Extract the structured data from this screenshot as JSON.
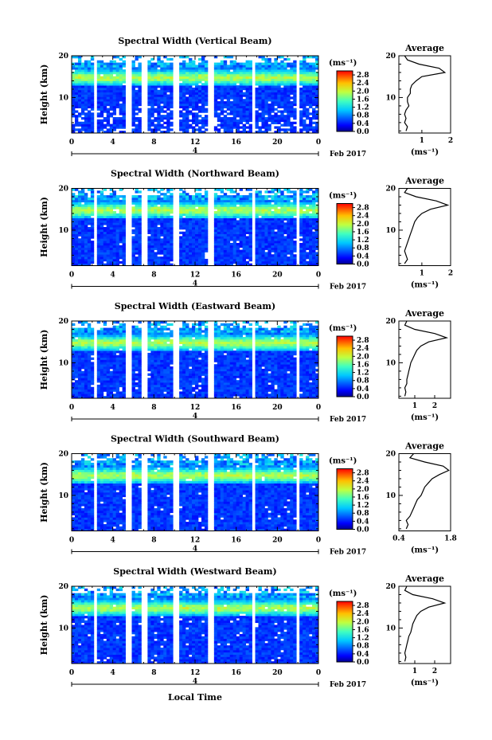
{
  "figure": {
    "xlabel": "Local Time",
    "date_label": "Feb 2017",
    "day_label": "4",
    "height_label": "Height (km)",
    "colorbar_unit": "(ms⁻¹)",
    "average_title": "Average",
    "average_xunit": "(ms⁻¹)"
  },
  "chart_data": [
    {
      "type": "heatmap",
      "title": "Spectral Width (Vertical Beam)",
      "xlabel": "Local Time",
      "ylabel": "Height (km)",
      "xlim": [
        0,
        24
      ],
      "ylim": [
        1.5,
        20
      ],
      "xticks": [
        "0",
        "4",
        "8",
        "12",
        "16",
        "20",
        "0"
      ],
      "yticks": [
        "10",
        "20"
      ],
      "colorbar": {
        "unit": "(ms⁻¹)",
        "ticks": [
          "0.0",
          "0.4",
          "0.8",
          "1.2",
          "1.6",
          "2.0",
          "2.4",
          "2.8"
        ],
        "range": [
          0,
          3.0
        ]
      },
      "average_profile": {
        "title": "Average",
        "xlabel": "(ms⁻¹)",
        "xticks": [
          "1",
          "2"
        ],
        "xlim": [
          0.2,
          2.0
        ],
        "yticks": [
          "10",
          "20"
        ],
        "height": [
          2,
          3,
          4,
          5,
          6,
          7,
          8,
          9,
          10,
          11,
          12,
          13,
          14,
          15,
          16,
          17,
          18,
          19,
          20
        ],
        "value": [
          0.45,
          0.5,
          0.4,
          0.45,
          0.4,
          0.45,
          0.55,
          0.5,
          0.5,
          0.6,
          0.6,
          0.65,
          0.8,
          1.0,
          1.8,
          1.6,
          0.9,
          0.5,
          0.4
        ]
      }
    },
    {
      "type": "heatmap",
      "title": "Spectral Width (Northward Beam)",
      "xlabel": "Local Time",
      "ylabel": "Height (km)",
      "xlim": [
        0,
        24
      ],
      "ylim": [
        1.5,
        20
      ],
      "xticks": [
        "0",
        "4",
        "8",
        "12",
        "16",
        "20",
        "0"
      ],
      "yticks": [
        "10",
        "20"
      ],
      "colorbar": {
        "unit": "(ms⁻¹)",
        "ticks": [
          "0.0",
          "0.4",
          "0.8",
          "1.2",
          "1.6",
          "2.0",
          "2.4",
          "2.8"
        ],
        "range": [
          0,
          3.0
        ]
      },
      "average_profile": {
        "title": "Average",
        "xlabel": "(ms⁻¹)",
        "xticks": [
          "1",
          "2"
        ],
        "xlim": [
          0.2,
          2.0
        ],
        "yticks": [
          "10",
          "20"
        ],
        "height": [
          2,
          3,
          4,
          5,
          6,
          7,
          8,
          9,
          10,
          11,
          12,
          13,
          14,
          15,
          16,
          17,
          18,
          19,
          20
        ],
        "value": [
          0.4,
          0.5,
          0.45,
          0.4,
          0.45,
          0.5,
          0.55,
          0.6,
          0.65,
          0.7,
          0.75,
          0.85,
          1.0,
          1.3,
          1.9,
          1.5,
          0.8,
          0.4,
          0.5
        ]
      }
    },
    {
      "type": "heatmap",
      "title": "Spectral Width (Eastward Beam)",
      "xlabel": "Local Time",
      "ylabel": "Height (km)",
      "xlim": [
        0,
        24
      ],
      "ylim": [
        1.5,
        20
      ],
      "xticks": [
        "0",
        "4",
        "8",
        "12",
        "16",
        "20",
        "0"
      ],
      "yticks": [
        "10",
        "20"
      ],
      "colorbar": {
        "unit": "(ms⁻¹)",
        "ticks": [
          "0.0",
          "0.4",
          "0.8",
          "1.2",
          "1.6",
          "2.0",
          "2.4",
          "2.8"
        ],
        "range": [
          0,
          3.0
        ]
      },
      "average_profile": {
        "title": "Average",
        "xlabel": "(ms⁻¹)",
        "xticks": [
          "1",
          "2"
        ],
        "xlim": [
          0.2,
          2.8
        ],
        "yticks": [
          "10",
          "20"
        ],
        "height": [
          2,
          3,
          4,
          5,
          6,
          7,
          8,
          9,
          10,
          11,
          12,
          13,
          14,
          15,
          16,
          17,
          18,
          19,
          20
        ],
        "value": [
          0.5,
          0.55,
          0.5,
          0.6,
          0.6,
          0.65,
          0.7,
          0.75,
          0.8,
          0.9,
          1.0,
          1.1,
          1.3,
          1.7,
          2.6,
          2.0,
          1.0,
          0.5,
          0.6
        ]
      }
    },
    {
      "type": "heatmap",
      "title": "Spectral Width (Southward Beam)",
      "xlabel": "Local Time",
      "ylabel": "Height (km)",
      "xlim": [
        0,
        24
      ],
      "ylim": [
        1.5,
        20
      ],
      "xticks": [
        "0",
        "4",
        "8",
        "12",
        "16",
        "20",
        "0"
      ],
      "yticks": [
        "10",
        "20"
      ],
      "colorbar": {
        "unit": "(ms⁻¹)",
        "ticks": [
          "0.0",
          "0.4",
          "0.8",
          "1.2",
          "1.6",
          "2.0",
          "2.4",
          "2.8"
        ],
        "range": [
          0,
          3.0
        ]
      },
      "average_profile": {
        "title": "Average",
        "xlabel": "(ms⁻¹)",
        "xticks": [
          "0.4",
          "1.8"
        ],
        "xlim": [
          0.4,
          1.8
        ],
        "yticks": [
          "10",
          "20"
        ],
        "height": [
          2,
          3,
          4,
          5,
          6,
          7,
          8,
          9,
          10,
          11,
          12,
          13,
          14,
          15,
          16,
          17,
          18,
          19,
          20
        ],
        "value": [
          0.6,
          0.65,
          0.6,
          0.7,
          0.75,
          0.8,
          0.85,
          0.9,
          1.0,
          1.05,
          1.1,
          1.2,
          1.3,
          1.5,
          1.75,
          1.6,
          1.1,
          0.7,
          0.8
        ]
      }
    },
    {
      "type": "heatmap",
      "title": "Spectral Width (Westward Beam)",
      "xlabel": "Local Time",
      "ylabel": "Height (km)",
      "xlim": [
        0,
        24
      ],
      "ylim": [
        1.5,
        20
      ],
      "xticks": [
        "0",
        "4",
        "8",
        "12",
        "16",
        "20",
        "0"
      ],
      "yticks": [
        "10",
        "20"
      ],
      "colorbar": {
        "unit": "(ms⁻¹)",
        "ticks": [
          "0.0",
          "0.4",
          "0.8",
          "1.2",
          "1.6",
          "2.0",
          "2.4",
          "2.8"
        ],
        "range": [
          0,
          3.0
        ]
      },
      "average_profile": {
        "title": "Average",
        "xlabel": "(ms⁻¹)",
        "xticks": [
          "1",
          "2"
        ],
        "xlim": [
          0.2,
          2.8
        ],
        "yticks": [
          "10",
          "20"
        ],
        "height": [
          2,
          3,
          4,
          5,
          6,
          7,
          8,
          9,
          10,
          11,
          12,
          13,
          14,
          15,
          16,
          17,
          18,
          19,
          20
        ],
        "value": [
          0.5,
          0.55,
          0.5,
          0.55,
          0.6,
          0.65,
          0.7,
          0.8,
          0.85,
          0.9,
          1.0,
          1.1,
          1.3,
          1.7,
          2.5,
          1.9,
          0.9,
          0.5,
          0.6
        ]
      }
    }
  ]
}
